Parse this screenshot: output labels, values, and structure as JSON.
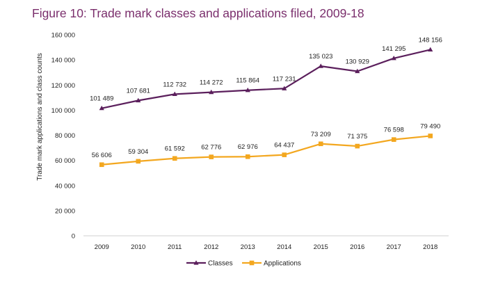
{
  "title": "Figure 10: Trade mark classes and applications filed, 2009-18",
  "colors": {
    "title": "#7a2e6c",
    "Classes": "#5b1f5c",
    "Applications": "#f3a71f"
  },
  "chart_data": {
    "type": "line",
    "title": "Figure 10: Trade mark classes and applications filed, 2009-18",
    "xlabel": "",
    "ylabel": "Trade mark applications and class counts",
    "categories": [
      "2009",
      "2010",
      "2011",
      "2012",
      "2013",
      "2014",
      "2015",
      "2016",
      "2017",
      "2018"
    ],
    "ylim": [
      0,
      160000
    ],
    "yticks": [
      0,
      20000,
      40000,
      60000,
      80000,
      100000,
      120000,
      140000,
      160000
    ],
    "ytick_labels": [
      "0",
      "20 000",
      "40 000",
      "60 000",
      "80 000",
      "100 000",
      "120 000",
      "140 000",
      "160 000"
    ],
    "grid": false,
    "legend_position": "bottom",
    "series": [
      {
        "name": "Classes",
        "marker": "triangle",
        "color": "#5b1f5c",
        "values": [
          101489,
          107681,
          112732,
          114272,
          115864,
          117231,
          135023,
          130929,
          141295,
          148156
        ],
        "labels": [
          "101 489",
          "107 681",
          "112 732",
          "114 272",
          "115 864",
          "117 231",
          "135 023",
          "130 929",
          "141 295",
          "148 156"
        ]
      },
      {
        "name": "Applications",
        "marker": "square",
        "color": "#f3a71f",
        "values": [
          56606,
          59304,
          61592,
          62776,
          62976,
          64437,
          73209,
          71375,
          76598,
          79490
        ],
        "labels": [
          "56 606",
          "59 304",
          "61 592",
          "62 776",
          "62 976",
          "64 437",
          "73 209",
          "71 375",
          "76 598",
          "79 490"
        ]
      }
    ]
  }
}
